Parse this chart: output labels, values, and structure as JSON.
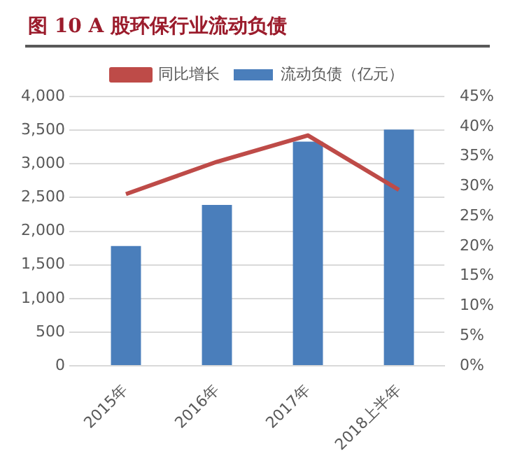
{
  "chart_data": {
    "type": "bar",
    "title": "图 10 A 股环保行业流动负债",
    "categories": [
      "2015年",
      "2016年",
      "2017年",
      "2018上半年"
    ],
    "series": [
      {
        "name": "流动负债（亿元）",
        "color": "#4a7ebb",
        "values": [
          1780,
          2390,
          3330,
          3510
        ]
      },
      {
        "name": "同比增长",
        "type": "line",
        "axis": "y2",
        "color": "#be4b48",
        "values": [
          28.7,
          34.1,
          38.5,
          29.4
        ]
      }
    ],
    "ylim": [
      0,
      4000
    ],
    "yticks": [
      {
        "value": 0,
        "label": "0"
      },
      {
        "value": 500,
        "label": "500"
      },
      {
        "value": 1000,
        "label": "1,000"
      },
      {
        "value": 1500,
        "label": "1,500"
      },
      {
        "value": 2000,
        "label": "2,000"
      },
      {
        "value": 2500,
        "label": "2,500"
      },
      {
        "value": 3000,
        "label": "3,000"
      },
      {
        "value": 3500,
        "label": "3,500"
      },
      {
        "value": 4000,
        "label": "4,000"
      }
    ],
    "y2lim": [
      0,
      45
    ],
    "y2ticks": [
      {
        "value": 0,
        "label": "0%"
      },
      {
        "value": 5,
        "label": "5%"
      },
      {
        "value": 10,
        "label": "10%"
      },
      {
        "value": 15,
        "label": "15%"
      },
      {
        "value": 20,
        "label": "20%"
      },
      {
        "value": 25,
        "label": "25%"
      },
      {
        "value": 30,
        "label": "30%"
      },
      {
        "value": 35,
        "label": "35%"
      },
      {
        "value": 40,
        "label": "40%"
      },
      {
        "value": 45,
        "label": "45%"
      }
    ],
    "grid": "y",
    "legend": "top",
    "marker": "none"
  }
}
